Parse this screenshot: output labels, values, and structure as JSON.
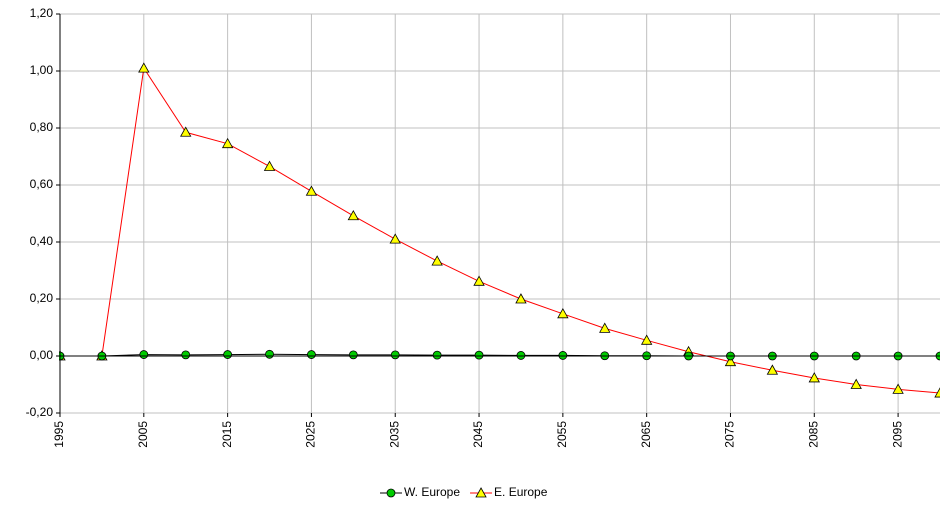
{
  "chart_data": {
    "type": "line",
    "x": [
      1995,
      2000,
      2005,
      2010,
      2015,
      2020,
      2025,
      2030,
      2035,
      2040,
      2045,
      2050,
      2055,
      2060,
      2065,
      2070,
      2075,
      2080,
      2085,
      2090,
      2095,
      2100
    ],
    "series": [
      {
        "name": "W. Europe",
        "color": "#00cc00",
        "marker": "circle",
        "values": [
          0,
          0,
          0.005,
          0.004,
          0.005,
          0.006,
          0.005,
          0.004,
          0.004,
          0.003,
          0.003,
          0.002,
          0.002,
          0.001,
          0.001,
          0,
          0,
          0,
          0,
          0,
          0,
          0
        ]
      },
      {
        "name": "E. Europe",
        "color": "#ff0000",
        "marker": "triangle",
        "values": [
          0,
          0,
          1.01,
          0.785,
          0.745,
          0.665,
          0.578,
          0.492,
          0.41,
          0.333,
          0.262,
          0.2,
          0.148,
          0.097,
          0.055,
          0.015,
          -0.02,
          -0.05,
          -0.077,
          -0.1,
          -0.117,
          -0.13
        ]
      }
    ],
    "xlim": [
      1995,
      2100
    ],
    "xticks": [
      1995,
      2005,
      2015,
      2025,
      2035,
      2045,
      2055,
      2065,
      2075,
      2085,
      2095
    ],
    "ylim": [
      -0.2,
      1.2
    ],
    "yticks": [
      {
        "value": -0.2,
        "label": "-0,20"
      },
      {
        "value": 0,
        "label": "0,00"
      },
      {
        "value": 0.2,
        "label": "0,20"
      },
      {
        "value": 0.4,
        "label": "0,40"
      },
      {
        "value": 0.6,
        "label": "0,60"
      },
      {
        "value": 0.8,
        "label": "0,80"
      },
      {
        "value": 1.0,
        "label": "1,00"
      },
      {
        "value": 1.2,
        "label": "1,20"
      }
    ],
    "grid": true,
    "legend": "bottom"
  }
}
